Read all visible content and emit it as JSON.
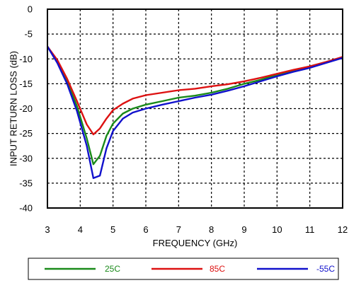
{
  "chart_data": {
    "type": "line",
    "xlabel": "FREQUENCY (GHz)",
    "ylabel": "INPUT RETURN LOSS (dB)",
    "xlim": [
      3,
      12
    ],
    "ylim": [
      -40,
      0
    ],
    "x_ticks": [
      3,
      4,
      5,
      6,
      7,
      8,
      9,
      10,
      11,
      12
    ],
    "y_ticks": [
      0,
      -5,
      -10,
      -15,
      -20,
      -25,
      -30,
      -35,
      -40
    ],
    "grid": true,
    "grid_style": "dotted",
    "legend_position": "bottom",
    "series": [
      {
        "name": "25C",
        "color": "#1a8a1a",
        "points": [
          [
            3,
            -7.5
          ],
          [
            3.3,
            -10.5
          ],
          [
            3.6,
            -14.5
          ],
          [
            3.9,
            -19.5
          ],
          [
            4.2,
            -26
          ],
          [
            4.4,
            -31.2
          ],
          [
            4.6,
            -29.5
          ],
          [
            4.8,
            -25.5
          ],
          [
            5,
            -23
          ],
          [
            5.3,
            -21
          ],
          [
            5.6,
            -20
          ],
          [
            6,
            -19.2
          ],
          [
            6.5,
            -18.5
          ],
          [
            7,
            -17.8
          ],
          [
            7.5,
            -17.4
          ],
          [
            8,
            -16.8
          ],
          [
            8.5,
            -16
          ],
          [
            9,
            -15
          ],
          [
            9.5,
            -14.2
          ],
          [
            10,
            -13.2
          ],
          [
            10.5,
            -12.3
          ],
          [
            11,
            -11.5
          ],
          [
            11.5,
            -10.6
          ],
          [
            12,
            -9.7
          ]
        ]
      },
      {
        "name": "85C",
        "color": "#dd1111",
        "points": [
          [
            3,
            -7.5
          ],
          [
            3.3,
            -10.2
          ],
          [
            3.6,
            -14
          ],
          [
            3.9,
            -18.5
          ],
          [
            4.2,
            -23.2
          ],
          [
            4.4,
            -25.2
          ],
          [
            4.6,
            -24
          ],
          [
            4.8,
            -22
          ],
          [
            5,
            -20.3
          ],
          [
            5.3,
            -19
          ],
          [
            5.6,
            -18
          ],
          [
            6,
            -17.3
          ],
          [
            6.5,
            -16.8
          ],
          [
            7,
            -16.3
          ],
          [
            7.5,
            -16
          ],
          [
            8,
            -15.5
          ],
          [
            8.5,
            -15.1
          ],
          [
            9,
            -14.5
          ],
          [
            9.5,
            -13.8
          ],
          [
            10,
            -13
          ],
          [
            10.5,
            -12.2
          ],
          [
            11,
            -11.5
          ],
          [
            11.5,
            -10.6
          ],
          [
            12,
            -9.6
          ]
        ]
      },
      {
        "name": "-55C",
        "color": "#1111cc",
        "points": [
          [
            3,
            -7.5
          ],
          [
            3.3,
            -10.8
          ],
          [
            3.6,
            -15
          ],
          [
            3.9,
            -20.5
          ],
          [
            4.2,
            -27.5
          ],
          [
            4.4,
            -34
          ],
          [
            4.6,
            -33.5
          ],
          [
            4.8,
            -28
          ],
          [
            5,
            -24.5
          ],
          [
            5.3,
            -22
          ],
          [
            5.6,
            -20.8
          ],
          [
            6,
            -20
          ],
          [
            6.5,
            -19.2
          ],
          [
            7,
            -18.5
          ],
          [
            7.5,
            -17.8
          ],
          [
            8,
            -17.2
          ],
          [
            8.5,
            -16.4
          ],
          [
            9,
            -15.5
          ],
          [
            9.5,
            -14.5
          ],
          [
            10,
            -13.5
          ],
          [
            10.5,
            -12.6
          ],
          [
            11,
            -11.8
          ],
          [
            11.5,
            -10.8
          ],
          [
            12,
            -9.8
          ]
        ]
      }
    ]
  }
}
